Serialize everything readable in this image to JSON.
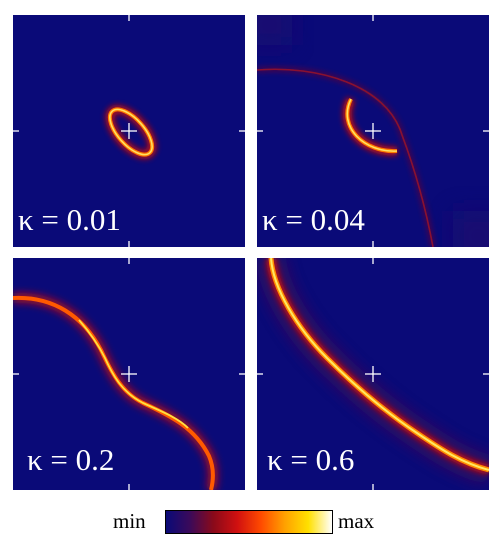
{
  "panels": [
    {
      "id": "p1",
      "label": "κ = 0.01"
    },
    {
      "id": "p2",
      "label": "κ = 0.04"
    },
    {
      "id": "p3",
      "label": "κ = 0.2"
    },
    {
      "id": "p4",
      "label": "κ = 0.6"
    }
  ],
  "colorbar": {
    "min_label": "min",
    "max_label": "max",
    "colors": [
      "#0a0a78",
      "#3a0a5a",
      "#8a0a1a",
      "#d01010",
      "#ff4a00",
      "#ffa000",
      "#ffe000",
      "#ffffff"
    ]
  },
  "background_color": "#0a0a78"
}
